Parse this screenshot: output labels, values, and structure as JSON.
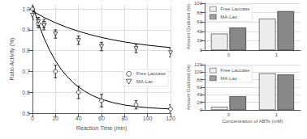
{
  "chart_data": [
    {
      "type": "scatter",
      "xlabel": "Reaction Time (min)",
      "ylabel": "Ratio Activity (%)",
      "xlim": [
        0,
        120
      ],
      "ylim": [
        0.5,
        1.02
      ],
      "xticks": [
        0,
        20,
        40,
        60,
        80,
        100,
        120
      ],
      "yticks": [
        0.5,
        0.6,
        0.7,
        0.8,
        0.9,
        {
          "value": 1.0,
          "label": "1.0"
        }
      ],
      "legend": "center right",
      "series": [
        {
          "type": "line",
          "color": "#000000",
          "x": [
            0,
            5,
            10,
            15,
            20,
            25,
            30,
            35,
            40,
            45,
            50,
            55,
            60,
            70,
            80,
            90,
            100,
            110,
            120
          ],
          "values": [
            1.02,
            0.93262,
            0.86035,
            0.80059,
            0.75117,
            0.7103,
            0.67651,
            0.64856,
            0.62545,
            0.60634,
            0.59053,
            0.57746,
            0.56665,
            0.55032,
            0.53916,
            0.53152,
            0.5263,
            0.52273,
            0.52028
          ]
        },
        {
          "type": "line",
          "color": "#000000",
          "x": [
            0,
            10,
            20,
            30,
            40,
            50,
            60,
            70,
            80,
            90,
            100,
            110,
            120
          ],
          "values": [
            0.99,
            0.95969,
            0.93386,
            0.91185,
            0.89309,
            0.87711,
            0.86349,
            0.85189,
            0.842,
            0.83357,
            0.82639,
            0.82027,
            0.81506
          ]
        },
        {
          "name": "Free Laccase",
          "type": "scatter",
          "marker": "circle",
          "color": "#000000",
          "x": [
            0,
            5,
            10,
            20,
            40,
            60,
            90,
            120
          ],
          "values": [
            1.0,
            0.93,
            0.93,
            0.7,
            0.6,
            0.56,
            0.54,
            0.52
          ],
          "errors": [
            0.01,
            0.02,
            0.02,
            0.03,
            0.03,
            0.03,
            0.02,
            0.02
          ]
        },
        {
          "name": "MA-Lac",
          "type": "scatter",
          "marker": "triangle-down",
          "color": "#000000",
          "x": [
            0,
            5,
            10,
            20,
            40,
            60,
            90,
            120
          ],
          "values": [
            0.97,
            0.94,
            0.92,
            0.88,
            0.85,
            0.82,
            0.81,
            0.79
          ],
          "errors": [
            0.02,
            0.02,
            0.02,
            0.02,
            0.02,
            0.02,
            0.02,
            0.02
          ]
        }
      ]
    },
    {
      "type": "bar",
      "categories": [
        "0",
        "1"
      ],
      "ylabel": "Amount Oxidized (%)",
      "ylim": [
        0,
        100
      ],
      "yticks": [
        0,
        20,
        40,
        60,
        80,
        100
      ],
      "legend": "upper left",
      "series": [
        {
          "name": "Free Laccase",
          "color": "#ececec",
          "values": [
            35,
            67
          ]
        },
        {
          "name": "MA-Lac",
          "color": "#888888",
          "values": [
            48,
            83
          ]
        }
      ]
    },
    {
      "type": "bar",
      "categories": [
        "0",
        "1"
      ],
      "xlabel": "Concentration of ABTs (mM)",
      "ylabel": "Amount Oxidized (%)",
      "ylim": [
        0,
        120
      ],
      "yticks": [
        0,
        20,
        40,
        60,
        80,
        100,
        120
      ],
      "legend": "upper left",
      "series": [
        {
          "name": "Free Laccase",
          "color": "#ececec",
          "values": [
            8,
            97
          ]
        },
        {
          "name": "MA-Lac",
          "color": "#888888",
          "values": [
            36,
            94
          ]
        }
      ]
    }
  ]
}
